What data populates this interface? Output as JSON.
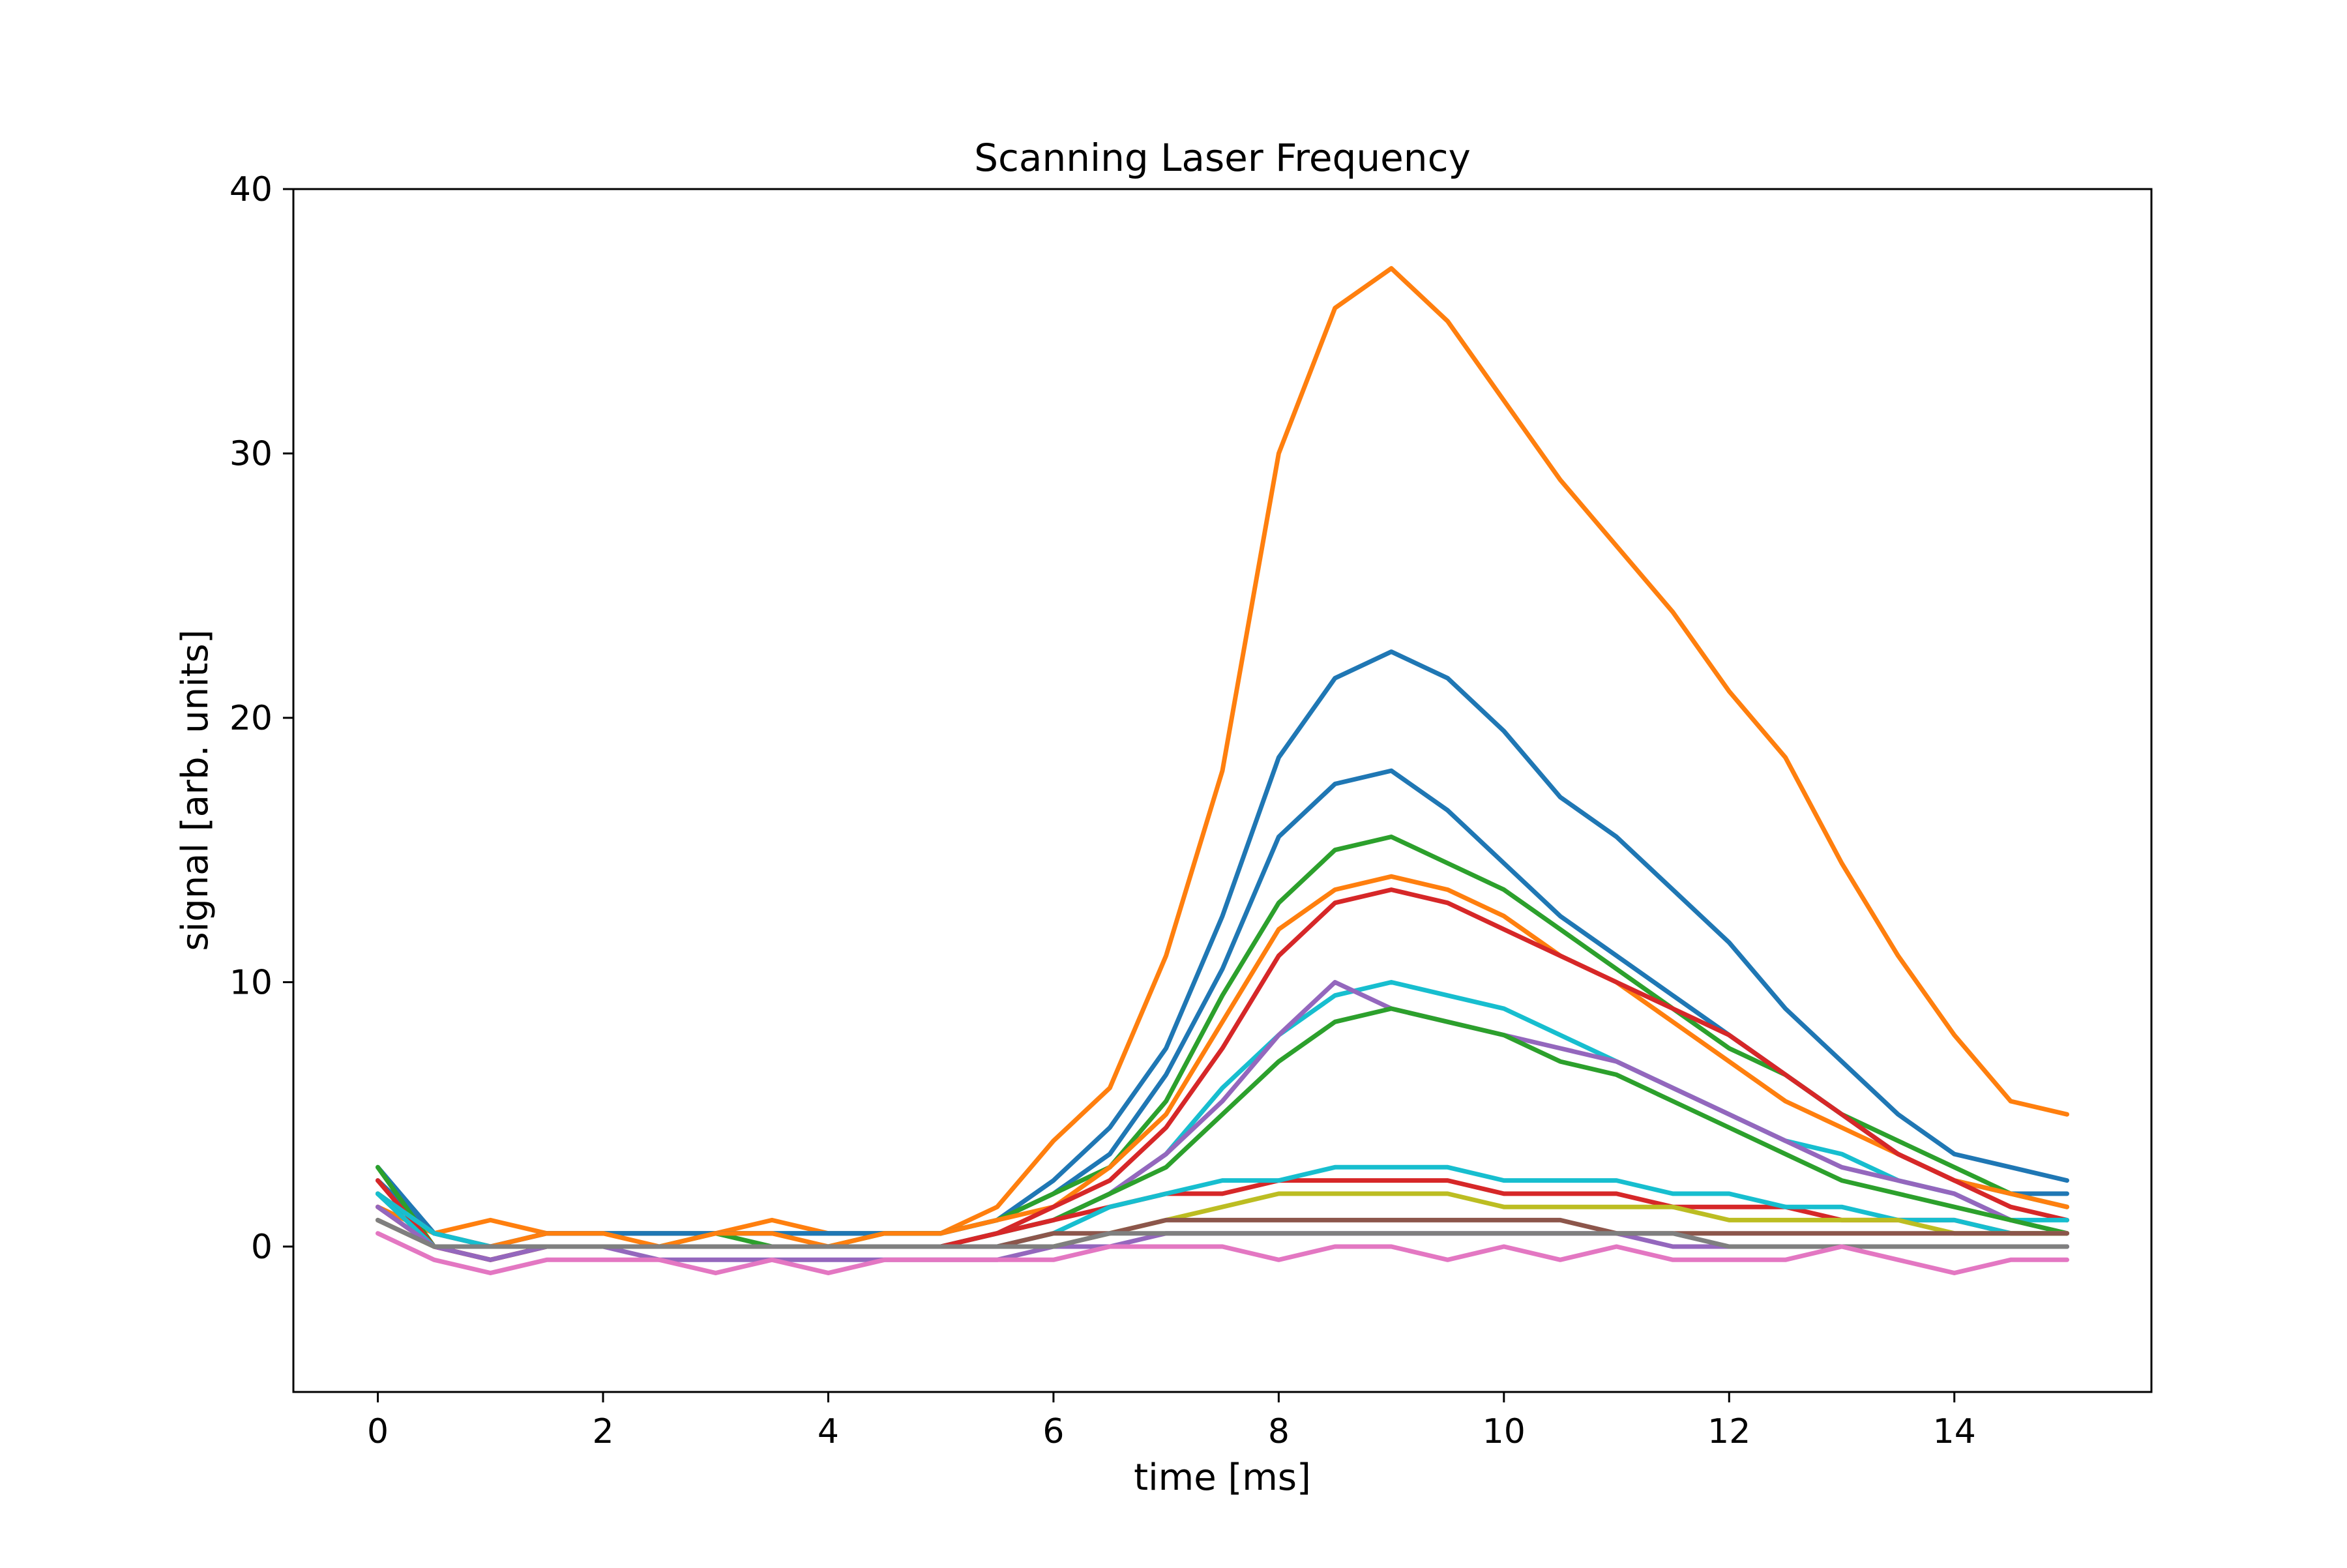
{
  "chart_data": {
    "type": "line",
    "title": "Scanning Laser Frequency",
    "xlabel": "time [ms]",
    "ylabel": "signal [arb. units]",
    "xlim": [
      -0.75,
      15.75
    ],
    "ylim": [
      -5.5,
      40
    ],
    "xticks": [
      0,
      2,
      4,
      6,
      8,
      10,
      12,
      14
    ],
    "yticks": [
      0,
      10,
      20,
      30,
      40
    ],
    "grid": false,
    "legend": "none",
    "x": [
      0,
      0.5,
      1,
      1.5,
      2,
      2.5,
      3,
      3.5,
      4,
      4.5,
      5,
      5.5,
      6,
      6.5,
      7,
      7.5,
      8,
      8.5,
      9,
      9.5,
      10,
      10.5,
      11,
      11.5,
      12,
      12.5,
      13,
      13.5,
      14,
      14.5,
      15
    ],
    "series": [
      {
        "color": "#ff7f0e",
        "values": [
          1.5,
          0.5,
          1.0,
          0.5,
          0.5,
          0.5,
          0.5,
          1.0,
          0.5,
          0.5,
          0.5,
          1.5,
          4.0,
          6.0,
          11.0,
          18.0,
          30.0,
          35.5,
          37.0,
          35.0,
          32.0,
          29.0,
          26.5,
          24.0,
          21.0,
          18.5,
          14.5,
          11.0,
          8.0,
          5.5,
          5.0
        ]
      },
      {
        "color": "#1f77b4",
        "values": [
          3.0,
          0.5,
          0.0,
          0.5,
          0.5,
          0.5,
          0.5,
          0.5,
          0.5,
          0.5,
          0.5,
          1.0,
          2.5,
          4.5,
          7.5,
          12.5,
          18.5,
          21.5,
          22.5,
          21.5,
          19.5,
          17.0,
          15.5,
          13.5,
          11.5,
          9.0,
          7.0,
          5.0,
          3.5,
          3.0,
          2.5
        ]
      },
      {
        "color": "#1f77b4",
        "values": [
          2.5,
          0.5,
          0.0,
          0.5,
          0.5,
          0.5,
          0.5,
          0.5,
          0.5,
          0.5,
          0.5,
          1.0,
          2.0,
          3.5,
          6.5,
          10.5,
          15.5,
          17.5,
          18.0,
          16.5,
          14.5,
          12.5,
          11.0,
          9.5,
          8.0,
          6.5,
          5.0,
          3.5,
          2.5,
          2.0,
          2.0
        ]
      },
      {
        "color": "#2ca02c",
        "values": [
          3.0,
          0.0,
          -0.5,
          0.0,
          0.0,
          0.0,
          0.5,
          0.0,
          0.0,
          0.5,
          0.5,
          1.0,
          2.0,
          3.0,
          5.5,
          9.5,
          13.0,
          15.0,
          15.5,
          14.5,
          13.5,
          12.0,
          10.5,
          9.0,
          7.5,
          6.5,
          5.0,
          4.0,
          3.0,
          2.0,
          1.5
        ]
      },
      {
        "color": "#ff7f0e",
        "values": [
          2.0,
          0.5,
          0.0,
          0.5,
          0.5,
          0.0,
          0.5,
          0.5,
          0.0,
          0.5,
          0.5,
          1.0,
          1.5,
          3.0,
          5.0,
          8.5,
          12.0,
          13.5,
          14.0,
          13.5,
          12.5,
          11.0,
          10.0,
          8.5,
          7.0,
          5.5,
          4.5,
          3.5,
          2.5,
          2.0,
          1.5
        ]
      },
      {
        "color": "#d62728",
        "values": [
          2.5,
          0.0,
          -0.5,
          0.0,
          0.0,
          0.0,
          0.0,
          0.0,
          0.0,
          0.0,
          0.0,
          0.5,
          1.5,
          2.5,
          4.5,
          7.5,
          11.0,
          13.0,
          13.5,
          13.0,
          12.0,
          11.0,
          10.0,
          9.0,
          8.0,
          6.5,
          5.0,
          3.5,
          2.5,
          1.5,
          1.0
        ]
      },
      {
        "color": "#17becf",
        "values": [
          2.0,
          0.5,
          0.0,
          0.0,
          0.0,
          0.0,
          0.0,
          0.0,
          0.0,
          0.0,
          0.0,
          0.5,
          1.0,
          2.0,
          3.5,
          6.0,
          8.0,
          9.5,
          10.0,
          9.5,
          9.0,
          8.0,
          7.0,
          6.0,
          5.0,
          4.0,
          3.5,
          2.5,
          2.0,
          1.0,
          1.0
        ]
      },
      {
        "color": "#9467bd",
        "values": [
          2.0,
          0.0,
          0.0,
          0.0,
          0.0,
          0.0,
          0.0,
          0.0,
          0.0,
          0.0,
          0.0,
          0.5,
          1.0,
          2.0,
          3.5,
          5.5,
          8.0,
          10.0,
          9.0,
          8.5,
          8.0,
          7.5,
          7.0,
          6.0,
          5.0,
          4.0,
          3.0,
          2.5,
          2.0,
          1.0,
          0.5
        ]
      },
      {
        "color": "#2ca02c",
        "values": [
          2.0,
          0.0,
          0.0,
          0.0,
          0.0,
          0.0,
          0.0,
          0.0,
          0.0,
          0.0,
          0.0,
          0.5,
          1.0,
          2.0,
          3.0,
          5.0,
          7.0,
          8.5,
          9.0,
          8.5,
          8.0,
          7.0,
          6.5,
          5.5,
          4.5,
          3.5,
          2.5,
          2.0,
          1.5,
          1.0,
          0.5
        ]
      },
      {
        "color": "#d62728",
        "values": [
          1.5,
          0.0,
          -0.5,
          0.0,
          0.0,
          0.0,
          0.0,
          0.0,
          0.0,
          0.0,
          0.0,
          0.5,
          1.0,
          1.5,
          2.0,
          2.0,
          2.5,
          2.5,
          2.5,
          2.5,
          2.0,
          2.0,
          2.0,
          1.5,
          1.5,
          1.5,
          1.0,
          1.0,
          1.0,
          0.5,
          0.5
        ]
      },
      {
        "color": "#17becf",
        "values": [
          2.0,
          0.0,
          0.0,
          0.0,
          0.0,
          0.0,
          0.0,
          0.0,
          0.0,
          0.0,
          0.0,
          0.0,
          0.5,
          1.5,
          2.0,
          2.5,
          2.5,
          3.0,
          3.0,
          3.0,
          2.5,
          2.5,
          2.5,
          2.0,
          2.0,
          1.5,
          1.5,
          1.0,
          1.0,
          0.5,
          0.5
        ]
      },
      {
        "color": "#bcbd22",
        "values": [
          1.0,
          0.0,
          0.0,
          0.0,
          0.0,
          0.0,
          0.0,
          0.0,
          0.0,
          0.0,
          0.0,
          0.0,
          0.0,
          0.5,
          1.0,
          1.5,
          2.0,
          2.0,
          2.0,
          2.0,
          1.5,
          1.5,
          1.5,
          1.5,
          1.0,
          1.0,
          1.0,
          1.0,
          0.5,
          0.5,
          0.5
        ]
      },
      {
        "color": "#9467bd",
        "values": [
          1.5,
          0.0,
          -0.5,
          0.0,
          0.0,
          -0.5,
          -0.5,
          -0.5,
          -0.5,
          -0.5,
          -0.5,
          -0.5,
          0.0,
          0.0,
          0.5,
          0.5,
          0.5,
          0.5,
          0.5,
          0.5,
          0.5,
          0.5,
          0.5,
          0.0,
          0.0,
          0.0,
          0.0,
          0.0,
          0.0,
          0.0,
          0.0
        ]
      },
      {
        "color": "#8c564b",
        "values": [
          1.0,
          0.0,
          0.0,
          0.0,
          0.0,
          0.0,
          0.0,
          0.0,
          0.0,
          0.0,
          0.0,
          0.0,
          0.5,
          0.5,
          1.0,
          1.0,
          1.0,
          1.0,
          1.0,
          1.0,
          1.0,
          1.0,
          0.5,
          0.5,
          0.5,
          0.5,
          0.5,
          0.5,
          0.5,
          0.5,
          0.5
        ]
      },
      {
        "color": "#7f7f7f",
        "values": [
          1.0,
          0.0,
          0.0,
          0.0,
          0.0,
          0.0,
          0.0,
          0.0,
          0.0,
          0.0,
          0.0,
          0.0,
          0.0,
          0.5,
          0.5,
          0.5,
          0.5,
          0.5,
          0.5,
          0.5,
          0.5,
          0.5,
          0.5,
          0.5,
          0.0,
          0.0,
          0.0,
          0.0,
          0.0,
          0.0,
          0.0
        ]
      },
      {
        "color": "#e377c2",
        "values": [
          0.5,
          -0.5,
          -1.0,
          -0.5,
          -0.5,
          -0.5,
          -1.0,
          -0.5,
          -1.0,
          -0.5,
          -0.5,
          -0.5,
          -0.5,
          0.0,
          0.0,
          0.0,
          -0.5,
          0.0,
          0.0,
          -0.5,
          0.0,
          -0.5,
          0.0,
          -0.5,
          -0.5,
          -0.5,
          0.0,
          -0.5,
          -1.0,
          -0.5,
          -0.5
        ]
      }
    ]
  }
}
